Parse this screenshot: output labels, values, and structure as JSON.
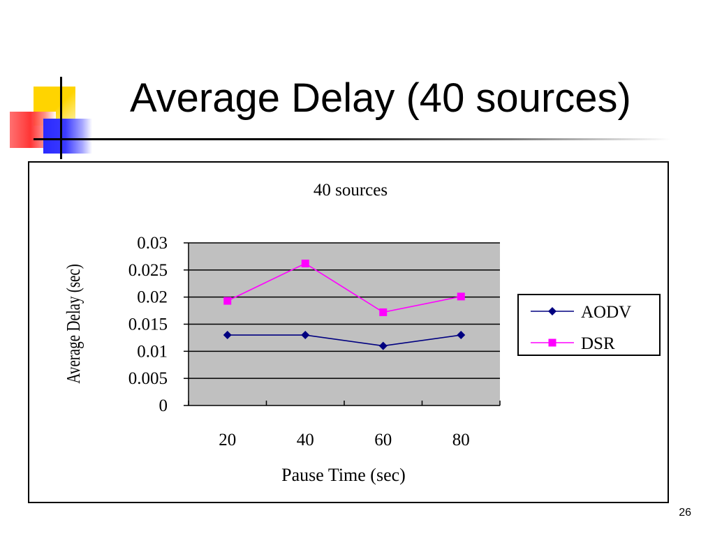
{
  "slide": {
    "title": "Average Delay (40 sources)",
    "page_number": "26"
  },
  "chart_data": {
    "type": "line",
    "title": "40 sources",
    "xlabel": "Pause Time (sec)",
    "ylabel": "Average Delay (sec)",
    "categories": [
      "20",
      "40",
      "60",
      "80"
    ],
    "ylim": [
      0,
      0.03
    ],
    "yticks": [
      "0",
      "0.005",
      "0.01",
      "0.015",
      "0.02",
      "0.025",
      "0.03"
    ],
    "grid": true,
    "legend_position": "right",
    "plot_background": "#c0c0c0",
    "series": [
      {
        "name": "AODV",
        "values": [
          0.013,
          0.013,
          0.011,
          0.013
        ],
        "color": "#000080",
        "marker": "diamond"
      },
      {
        "name": "DSR",
        "values": [
          0.0193,
          0.0262,
          0.0172,
          0.0201
        ],
        "color": "#ff00ff",
        "marker": "square"
      }
    ]
  }
}
